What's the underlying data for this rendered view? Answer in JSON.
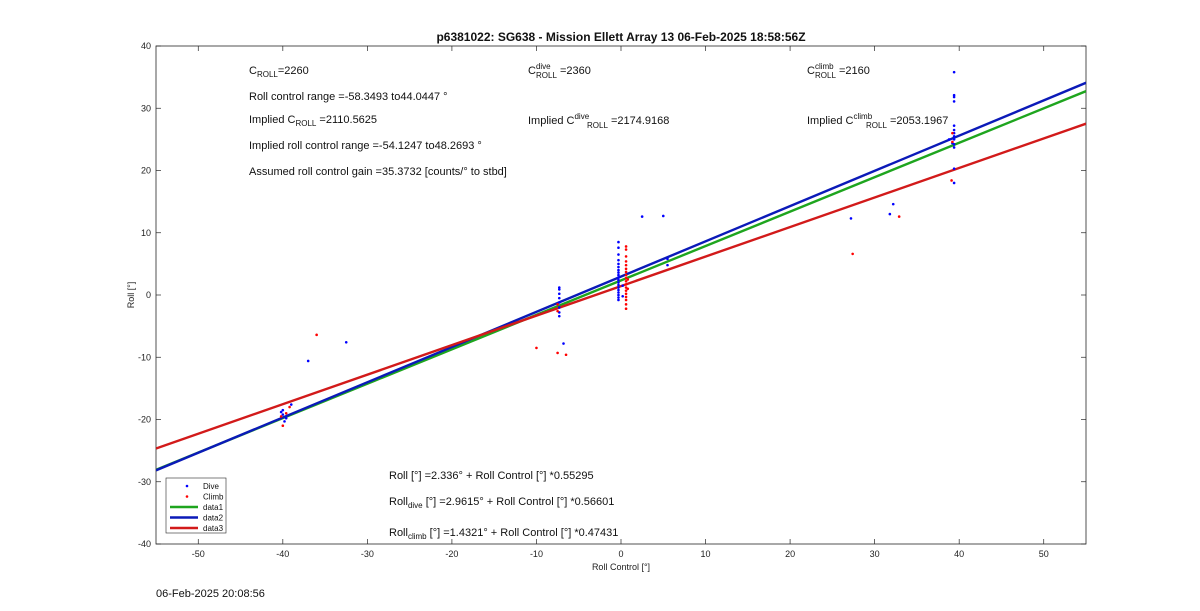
{
  "chart_data": {
    "type": "scatter",
    "title": "p6381022: SG638 - Mission Ellett Array 13 06-Feb-2025 18:58:56Z",
    "xlabel": "Roll Control [°]",
    "ylabel": "Roll [°]",
    "xlim": [
      -55,
      55
    ],
    "ylim": [
      -40,
      40
    ],
    "xticks": [
      -50,
      -40,
      -30,
      -20,
      -10,
      0,
      10,
      20,
      30,
      40,
      50
    ],
    "yticks": [
      -40,
      -30,
      -20,
      -10,
      0,
      10,
      20,
      30,
      40
    ],
    "grid": false,
    "legend_position": "bottom-left",
    "colors": {
      "dive": "#0000ff",
      "climb": "#ff0000",
      "data1": "#1ea51e",
      "data2": "#0b1ab8",
      "data3": "#d21a1a"
    },
    "series": [
      {
        "name": "Dive",
        "kind": "points",
        "points": [
          [
            -40,
            -18.5
          ],
          [
            -40,
            -19.2
          ],
          [
            -39.6,
            -19.8
          ],
          [
            -40.2,
            -18.8
          ],
          [
            -39.8,
            -20.3
          ],
          [
            -39,
            -17.6
          ],
          [
            -37,
            -10.6
          ],
          [
            -32.5,
            -7.6
          ],
          [
            -7.3,
            1.2
          ],
          [
            -7.3,
            0.9
          ],
          [
            -7.3,
            0.2
          ],
          [
            -7.3,
            -0.5
          ],
          [
            -7.3,
            -1.2
          ],
          [
            -7.3,
            -2
          ],
          [
            -7.3,
            -2.8
          ],
          [
            -7.3,
            -3.4
          ],
          [
            -6.8,
            -7.8
          ],
          [
            -0.3,
            8.5
          ],
          [
            -0.3,
            7.6
          ],
          [
            -0.3,
            6.5
          ],
          [
            -0.3,
            5.6
          ],
          [
            -0.3,
            5
          ],
          [
            -0.3,
            4.5
          ],
          [
            -0.3,
            4
          ],
          [
            -0.3,
            3.6
          ],
          [
            -0.3,
            3.2
          ],
          [
            -0.3,
            2.8
          ],
          [
            -0.3,
            2.4
          ],
          [
            -0.3,
            2
          ],
          [
            -0.3,
            1.6
          ],
          [
            -0.3,
            1.2
          ],
          [
            -0.3,
            0.8
          ],
          [
            -0.3,
            0.4
          ],
          [
            -0.3,
            0
          ],
          [
            -0.3,
            -0.4
          ],
          [
            -0.3,
            -0.8
          ],
          [
            0.2,
            1.5
          ],
          [
            0.2,
            -0.2
          ],
          [
            2.5,
            12.6
          ],
          [
            5,
            12.7
          ],
          [
            5.5,
            5.8
          ],
          [
            5.5,
            4.8
          ],
          [
            27.2,
            12.3
          ],
          [
            32.2,
            14.6
          ],
          [
            31.8,
            13
          ],
          [
            38.8,
            25
          ],
          [
            39.2,
            24.4
          ],
          [
            39.4,
            35.8
          ],
          [
            39.4,
            32.1
          ],
          [
            39.4,
            31.8
          ],
          [
            39.4,
            31.1
          ],
          [
            39.4,
            27.2
          ],
          [
            39.4,
            26.5
          ],
          [
            39.4,
            26
          ],
          [
            39.4,
            25.5
          ],
          [
            39.4,
            25
          ],
          [
            39.4,
            24.2
          ],
          [
            39.4,
            23.7
          ],
          [
            39.4,
            20.3
          ],
          [
            39.4,
            18
          ]
        ]
      },
      {
        "name": "Climb",
        "kind": "points",
        "points": [
          [
            -40,
            -21
          ],
          [
            -40.2,
            -19.5
          ],
          [
            -39.6,
            -19
          ],
          [
            -39.2,
            -18
          ],
          [
            -36,
            -6.4
          ],
          [
            -10,
            -8.5
          ],
          [
            -7.5,
            -9.3
          ],
          [
            -6.5,
            -9.6
          ],
          [
            -7.5,
            -1.5
          ],
          [
            -7.5,
            -2.6
          ],
          [
            0.6,
            7.8
          ],
          [
            0.6,
            7.3
          ],
          [
            0.6,
            6.2
          ],
          [
            0.6,
            5.4
          ],
          [
            0.6,
            4.8
          ],
          [
            0.6,
            4.2
          ],
          [
            0.6,
            3.7
          ],
          [
            0.6,
            3.2
          ],
          [
            0.6,
            2.7
          ],
          [
            0.6,
            2.2
          ],
          [
            0.6,
            1.7
          ],
          [
            0.6,
            1.2
          ],
          [
            0.6,
            0.7
          ],
          [
            0.6,
            0.2
          ],
          [
            0.6,
            -0.3
          ],
          [
            0.6,
            -0.8
          ],
          [
            0.6,
            -1.5
          ],
          [
            0.6,
            -2.2
          ],
          [
            0.8,
            2.5
          ],
          [
            0.8,
            1
          ],
          [
            27.4,
            6.6
          ],
          [
            32.9,
            12.6
          ],
          [
            39.1,
            18.4
          ],
          [
            39.2,
            26
          ],
          [
            39.2,
            24.6
          ]
        ]
      },
      {
        "name": "data1",
        "kind": "line",
        "intercept": 2.336,
        "slope": 0.55295
      },
      {
        "name": "data2",
        "kind": "line",
        "intercept": 2.9615,
        "slope": 0.56601
      },
      {
        "name": "data3",
        "kind": "line",
        "intercept": 1.4321,
        "slope": 0.47431
      }
    ],
    "annotations": {
      "c_roll": {
        "pre": "C",
        "sub": "ROLL",
        "post": "=2260"
      },
      "c_dive": {
        "pre": "C",
        "sup": "dive",
        "sub": "ROLL",
        "post": " =2360"
      },
      "c_climb": {
        "pre": "C",
        "sup": "climb",
        "sub": "ROLL",
        "post": " =2160"
      },
      "roll_range": "Roll control range =-58.3493 to44.0447 °",
      "implied_c": {
        "pre": "Implied C",
        "sub": "ROLL",
        "post": " =2110.5625"
      },
      "implied_dive": {
        "pre": "Implied C",
        "sup": "dive",
        "sub": "ROLL",
        "post": " =2174.9168"
      },
      "implied_climb": {
        "pre": "Implied C",
        "sup": "climb",
        "sub": "ROLL",
        "post": " =2053.1967"
      },
      "implied_range": "Implied roll control range =-54.1247 to48.2693 °",
      "gain": "Assumed roll control gain =35.3732 [counts/° to stbd]",
      "fit_all": "Roll [°] =2.336° + Roll Control [°] *0.55295",
      "fit_dive": {
        "pre": "Roll",
        "sub": "dive",
        "post": " [°] =2.9615° + Roll Control [°] *0.56601"
      },
      "fit_climb": {
        "pre": "Roll",
        "sub": "climb",
        "post": " [°] =1.4321° + Roll Control [°] *0.47431"
      }
    }
  },
  "footer": {
    "timestamp": "06-Feb-2025 20:08:56"
  }
}
